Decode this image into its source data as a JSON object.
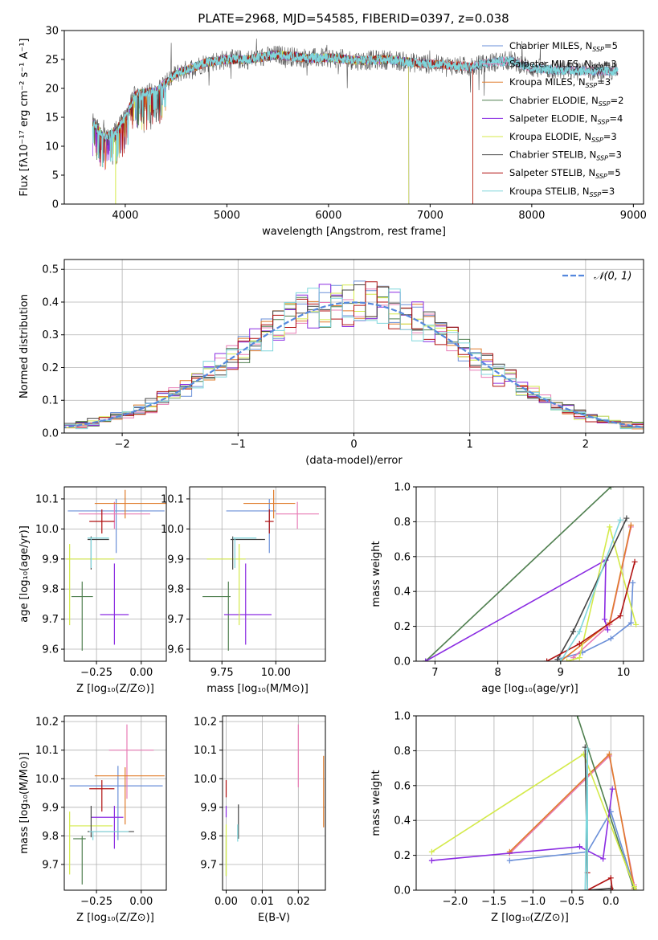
{
  "figure": {
    "title": "PLATE=2968, MJD=54585, FIBERID=0397, z=0.038"
  },
  "colors": {
    "Chabrier MILES": "#6a8fd8",
    "Salpeter MILES": "#e87cb5",
    "Kroupa MILES": "#e07b2a",
    "Chabrier ELODIE": "#4f7f4f",
    "Salpeter ELODIE": "#8a2be2",
    "Kroupa ELODIE": "#d4ea4a",
    "Chabrier STELIB": "#444444",
    "Salpeter STELIB": "#b01010",
    "Kroupa STELIB": "#7fd6dc"
  },
  "chart_data": [
    {
      "type": "line",
      "id": "spectrum",
      "xlabel": "wavelength [Angstrom, rest frame]",
      "ylabel": "Flux [fλ10⁻¹⁷ erg cm⁻² s⁻¹ A⁻¹]",
      "xlim": [
        3400,
        9100
      ],
      "ylim": [
        0,
        30
      ],
      "xticks": [
        4000,
        5000,
        6000,
        7000,
        8000,
        9000
      ],
      "yticks": [
        0,
        5,
        10,
        15,
        20,
        25,
        30
      ],
      "grid": false,
      "legend_position": "right",
      "legend": [
        {
          "label": "Chabrier MILES, N",
          "sub": "SSP",
          "eq": "=5",
          "series": "Chabrier MILES"
        },
        {
          "label": "Salpeter MILES, N",
          "sub": "SSP",
          "eq": "=3",
          "series": "Salpeter MILES"
        },
        {
          "label": "Kroupa MILES, N",
          "sub": "SSP",
          "eq": "=3",
          "series": "Kroupa MILES"
        },
        {
          "label": "Chabrier ELODIE, N",
          "sub": "SSP",
          "eq": "=2",
          "series": "Chabrier ELODIE"
        },
        {
          "label": "Salpeter ELODIE, N",
          "sub": "SSP",
          "eq": "=4",
          "series": "Salpeter ELODIE"
        },
        {
          "label": "Kroupa ELODIE, N",
          "sub": "SSP",
          "eq": "=3",
          "series": "Kroupa ELODIE"
        },
        {
          "label": "Chabrier STELIB, N",
          "sub": "SSP",
          "eq": "=3",
          "series": "Chabrier STELIB"
        },
        {
          "label": "Salpeter STELIB, N",
          "sub": "SSP",
          "eq": "=5",
          "series": "Salpeter STELIB"
        },
        {
          "label": "Kroupa STELIB, N",
          "sub": "SSP",
          "eq": "=3",
          "series": "Kroupa STELIB"
        }
      ],
      "observed_flux_envelope": {
        "x": [
          3680,
          3800,
          3900,
          4000,
          4100,
          4300,
          4500,
          4800,
          5000,
          5200,
          5500,
          5800,
          6000,
          6300,
          6600,
          6800,
          7000,
          7200,
          7400,
          7600,
          7800,
          8000,
          8200,
          8500,
          8850
        ],
        "y": [
          14,
          11.5,
          12.5,
          15,
          19,
          19.5,
          22.5,
          24.5,
          25,
          25,
          25.8,
          25.2,
          25.3,
          24.8,
          25,
          24.5,
          24.2,
          24,
          23.7,
          24.5,
          24.8,
          23.5,
          23.2,
          23,
          23
        ]
      },
      "model_cutoffs": {
        "Kroupa MILES": 7420,
        "Salpeter STELIB": 7420,
        "Kroupa ELODIE": 6790,
        "Chabrier ELODIE": 6790,
        "Salpeter ELODIE": 6790
      }
    },
    {
      "type": "line",
      "id": "residual-histogram",
      "xlabel": "(data-model)/error",
      "ylabel": "Normed distribution",
      "xlim": [
        -2.5,
        2.5
      ],
      "ylim": [
        0,
        0.53
      ],
      "xticks": [
        -2,
        -1,
        0,
        1,
        2
      ],
      "yticks": [
        0.0,
        0.1,
        0.2,
        0.3,
        0.4,
        0.5
      ],
      "grid": true,
      "legend_position": "top-right",
      "reference_curve": {
        "label": "𝒩(0, 1)",
        "mean": 0,
        "sigma": 1,
        "color": "#5588dd"
      },
      "bin_width": 0.1
    },
    {
      "type": "scatter",
      "id": "age-vs-Z",
      "xlabel": "Z [log₁₀(Z/Z⊙)]",
      "ylabel": "age  [log₁₀(age/yr)]",
      "xlim": [
        -0.43,
        0.14
      ],
      "ylim": [
        9.56,
        10.14
      ],
      "xticks": [
        -0.25,
        0.0
      ],
      "yticks": [
        9.6,
        9.7,
        9.8,
        9.9,
        10.0,
        10.1
      ],
      "grid": true,
      "points": [
        {
          "series": "Chabrier MILES",
          "x": -0.14,
          "y": 10.06,
          "xerr": [
            0.27,
            0.27
          ],
          "yerr": [
            0.14,
            0.04
          ]
        },
        {
          "series": "Salpeter MILES",
          "x": -0.15,
          "y": 10.05,
          "xerr": [
            0.2,
            0.2
          ],
          "yerr": [
            0.05,
            0.04
          ]
        },
        {
          "series": "Kroupa MILES",
          "x": -0.09,
          "y": 10.085,
          "xerr": [
            0.17,
            0.23
          ],
          "yerr": [
            0.05,
            0.045
          ]
        },
        {
          "series": "Chabrier ELODIE",
          "x": -0.33,
          "y": 9.775,
          "xerr": [
            0.06,
            0.06
          ],
          "yerr": [
            0.18,
            0.05
          ]
        },
        {
          "series": "Salpeter ELODIE",
          "x": -0.15,
          "y": 9.715,
          "xerr": [
            0.08,
            0.08
          ],
          "yerr": [
            0.1,
            0.17
          ]
        },
        {
          "series": "Kroupa ELODIE",
          "x": -0.4,
          "y": 9.9,
          "xerr": [
            0.02,
            0.25
          ],
          "yerr": [
            0.22,
            0.05
          ]
        },
        {
          "series": "Chabrier STELIB",
          "x": -0.28,
          "y": 9.965,
          "xerr": [
            0.02,
            0.1
          ],
          "yerr": [
            0.1,
            0.01
          ]
        },
        {
          "series": "Salpeter STELIB",
          "x": -0.22,
          "y": 10.025,
          "xerr": [
            0.07,
            0.07
          ],
          "yerr": [
            0.04,
            0.04
          ]
        },
        {
          "series": "Kroupa STELIB",
          "x": -0.28,
          "y": 9.97,
          "xerr": [
            0.02,
            0.1
          ],
          "yerr": [
            0.1,
            0.0
          ]
        }
      ]
    },
    {
      "type": "scatter",
      "id": "age-vs-mass",
      "xlabel": "mass [log₁₀(M/M⊙)]",
      "ylabel": "",
      "xlim": [
        9.6,
        10.23
      ],
      "ylim": [
        9.56,
        10.14
      ],
      "xticks": [
        9.75,
        10.0
      ],
      "yticks": [
        9.6,
        9.7,
        9.8,
        9.9,
        10.0,
        10.1
      ],
      "grid": true,
      "points": [
        {
          "series": "Chabrier MILES",
          "x": 9.97,
          "y": 10.06,
          "xerr": [
            0.2,
            0.03
          ],
          "yerr": [
            0.14,
            0.04
          ]
        },
        {
          "series": "Salpeter MILES",
          "x": 10.1,
          "y": 10.05,
          "xerr": [
            0.1,
            0.1
          ],
          "yerr": [
            0.05,
            0.04
          ]
        },
        {
          "series": "Kroupa MILES",
          "x": 9.99,
          "y": 10.085,
          "xerr": [
            0.14,
            0.1
          ],
          "yerr": [
            0.05,
            0.045
          ]
        },
        {
          "series": "Chabrier ELODIE",
          "x": 9.78,
          "y": 9.775,
          "xerr": [
            0.12,
            0.01
          ],
          "yerr": [
            0.18,
            0.05
          ]
        },
        {
          "series": "Salpeter ELODIE",
          "x": 9.86,
          "y": 9.715,
          "xerr": [
            0.1,
            0.12
          ],
          "yerr": [
            0.1,
            0.17
          ]
        },
        {
          "series": "Kroupa ELODIE",
          "x": 9.83,
          "y": 9.9,
          "xerr": [
            0.15,
            0.03
          ],
          "yerr": [
            0.22,
            0.05
          ]
        },
        {
          "series": "Chabrier STELIB",
          "x": 9.8,
          "y": 9.965,
          "xerr": [
            0.01,
            0.15
          ],
          "yerr": [
            0.1,
            0.01
          ]
        },
        {
          "series": "Salpeter STELIB",
          "x": 9.97,
          "y": 10.025,
          "xerr": [
            0.02,
            0.02
          ],
          "yerr": [
            0.04,
            0.04
          ]
        },
        {
          "series": "Kroupa STELIB",
          "x": 9.81,
          "y": 9.97,
          "xerr": [
            0.01,
            0.1
          ],
          "yerr": [
            0.1,
            0.0
          ]
        }
      ]
    },
    {
      "type": "line",
      "id": "mass-weight-vs-age",
      "xlabel": "age  [log₁₀(age/yr)]",
      "ylabel": "mass weight",
      "xlim": [
        6.7,
        10.32
      ],
      "ylim": [
        0,
        1
      ],
      "xticks": [
        7,
        8,
        9,
        10
      ],
      "yticks": [
        0.0,
        0.2,
        0.4,
        0.6,
        0.8,
        1.0
      ],
      "grid": true,
      "series": [
        {
          "name": "Chabrier MILES",
          "x": [
            8.95,
            9.35,
            9.8,
            10.12,
            10.15
          ],
          "y": [
            0.01,
            0.05,
            0.13,
            0.22,
            0.45
          ]
        },
        {
          "name": "Salpeter MILES",
          "x": [
            9.2,
            9.78,
            10.12
          ],
          "y": [
            0.02,
            0.21,
            0.77
          ]
        },
        {
          "name": "Kroupa MILES",
          "x": [
            9.0,
            9.78,
            10.12
          ],
          "y": [
            0.0,
            0.22,
            0.78
          ]
        },
        {
          "name": "Chabrier ELODIE",
          "x": [
            6.85,
            9.8
          ],
          "y": [
            0.0,
            1.0
          ]
        },
        {
          "name": "Salpeter ELODIE",
          "x": [
            6.85,
            9.72,
            9.7,
            9.75
          ],
          "y": [
            0.0,
            0.58,
            0.24,
            0.18
          ]
        },
        {
          "name": "Kroupa ELODIE",
          "x": [
            9.1,
            9.3,
            9.78,
            10.2
          ],
          "y": [
            0.0,
            0.02,
            0.77,
            0.21
          ]
        },
        {
          "name": "Chabrier STELIB",
          "x": [
            8.95,
            9.2,
            10.05
          ],
          "y": [
            0.01,
            0.17,
            0.82
          ]
        },
        {
          "name": "Salpeter STELIB",
          "x": [
            8.78,
            9.3,
            9.95,
            10.18
          ],
          "y": [
            0.0,
            0.1,
            0.26,
            0.57
          ]
        },
        {
          "name": "Kroupa STELIB",
          "x": [
            9.0,
            9.3,
            9.95
          ],
          "y": [
            0.0,
            0.17,
            0.81
          ]
        }
      ]
    },
    {
      "type": "scatter",
      "id": "mass-vs-Z",
      "xlabel": "Z [log₁₀(Z/Z⊙)]",
      "ylabel": "mass [log₁₀(M/M⊙)]",
      "xlim": [
        -0.43,
        0.14
      ],
      "ylim": [
        9.61,
        10.22
      ],
      "xticks": [
        -0.25,
        0.0
      ],
      "yticks": [
        9.7,
        9.8,
        9.9,
        10.0,
        10.1,
        10.2
      ],
      "grid": true,
      "points": [
        {
          "series": "Chabrier MILES",
          "x": -0.13,
          "y": 9.975,
          "xerr": [
            0.27,
            0.25
          ],
          "yerr": [
            0.19,
            0.07
          ]
        },
        {
          "series": "Salpeter MILES",
          "x": -0.08,
          "y": 10.1,
          "xerr": [
            0.1,
            0.15
          ],
          "yerr": [
            0.17,
            0.09
          ]
        },
        {
          "series": "Kroupa MILES",
          "x": -0.09,
          "y": 10.01,
          "xerr": [
            0.17,
            0.22
          ],
          "yerr": [
            0.17,
            0.03
          ]
        },
        {
          "series": "Chabrier ELODIE",
          "x": -0.33,
          "y": 9.79,
          "xerr": [
            0.05,
            0.02
          ],
          "yerr": [
            0.16,
            0.01
          ]
        },
        {
          "series": "Salpeter ELODIE",
          "x": -0.15,
          "y": 9.865,
          "xerr": [
            0.13,
            0.05
          ],
          "yerr": [
            0.11,
            0.04
          ]
        },
        {
          "series": "Kroupa ELODIE",
          "x": -0.4,
          "y": 9.835,
          "xerr": [
            0.0,
            0.24
          ],
          "yerr": [
            0.17,
            0.05
          ]
        },
        {
          "series": "Chabrier STELIB",
          "x": -0.28,
          "y": 9.815,
          "xerr": [
            0.02,
            0.24
          ],
          "yerr": [
            0.02,
            0.09
          ]
        },
        {
          "series": "Salpeter STELIB",
          "x": -0.22,
          "y": 9.965,
          "xerr": [
            0.07,
            0.07
          ],
          "yerr": [
            0.08,
            0.03
          ]
        },
        {
          "series": "Kroupa STELIB",
          "x": -0.27,
          "y": 9.815,
          "xerr": [
            0.02,
            0.2
          ],
          "yerr": [
            0.03,
            0.0
          ]
        }
      ]
    },
    {
      "type": "scatter",
      "id": "mass-vs-ebv",
      "xlabel": "E(B-V)",
      "ylabel": "",
      "xlim": [
        -0.001,
        0.0275
      ],
      "ylim": [
        9.61,
        10.22
      ],
      "xticks": [
        0.0,
        0.01,
        0.02
      ],
      "yticks": [
        9.7,
        9.8,
        9.9,
        10.0,
        10.1,
        10.2
      ],
      "grid": true,
      "points": [
        {
          "series": "Chabrier MILES",
          "x": 0.02,
          "y": 9.975,
          "xerr": [
            0,
            0
          ],
          "yerr": [
            0.0,
            0.0
          ]
        },
        {
          "series": "Salpeter MILES",
          "x": 0.02,
          "y": 10.1,
          "xerr": [
            0,
            0
          ],
          "yerr": [
            0.13,
            0.09
          ]
        },
        {
          "series": "Kroupa MILES",
          "x": 0.027,
          "y": 9.99,
          "xerr": [
            0,
            0
          ],
          "yerr": [
            0.16,
            0.09
          ]
        },
        {
          "series": "Chabrier ELODIE",
          "x": 0.0,
          "y": 9.79,
          "xerr": [
            0,
            0
          ],
          "yerr": [
            0.13,
            0.01
          ]
        },
        {
          "series": "Salpeter ELODIE",
          "x": 0.0,
          "y": 9.865,
          "xerr": [
            0,
            0
          ],
          "yerr": [
            0.0,
            0.04
          ]
        },
        {
          "series": "Kroupa ELODIE",
          "x": 0.0,
          "y": 9.8,
          "xerr": [
            0,
            0
          ],
          "yerr": [
            0.14,
            0.04
          ]
        },
        {
          "series": "Chabrier STELIB",
          "x": 0.0034,
          "y": 9.83,
          "xerr": [
            0,
            0
          ],
          "yerr": [
            0.04,
            0.08
          ]
        },
        {
          "series": "Salpeter STELIB",
          "x": 0.0,
          "y": 9.965,
          "xerr": [
            0,
            0
          ],
          "yerr": [
            0.03,
            0.03
          ]
        },
        {
          "series": "Kroupa STELIB",
          "x": 0.0032,
          "y": 9.82,
          "xerr": [
            0,
            0
          ],
          "yerr": [
            0.04,
            0.02
          ]
        }
      ]
    },
    {
      "type": "line",
      "id": "mass-weight-vs-Z",
      "xlabel": "Z [log₁₀(Z/Z⊙)]",
      "ylabel": "mass weight",
      "xlim": [
        -2.5,
        0.42
      ],
      "ylim": [
        0,
        1
      ],
      "xticks": [
        -2.0,
        -1.5,
        -1.0,
        -0.5,
        0.0
      ],
      "yticks": [
        0.0,
        0.2,
        0.4,
        0.6,
        0.8,
        1.0
      ],
      "grid": true,
      "series": [
        {
          "name": "Chabrier MILES",
          "x": [
            -1.3,
            -0.3,
            0.0,
            0.3
          ],
          "y": [
            0.17,
            0.22,
            0.45,
            0.02
          ]
        },
        {
          "name": "Salpeter MILES",
          "x": [
            -1.3,
            -0.02,
            0.3
          ],
          "y": [
            0.21,
            0.77,
            0.03
          ]
        },
        {
          "name": "Kroupa MILES",
          "x": [
            -1.3,
            -0.02,
            0.3
          ],
          "y": [
            0.22,
            0.78,
            0.01
          ]
        },
        {
          "name": "Chabrier ELODIE",
          "x": [
            -0.43,
            0.3
          ],
          "y": [
            1.0,
            0.0
          ]
        },
        {
          "name": "Salpeter ELODIE",
          "x": [
            -2.3,
            -0.4,
            -0.1,
            0.02
          ],
          "y": [
            0.17,
            0.25,
            0.18,
            0.58
          ]
        },
        {
          "name": "Kroupa ELODIE",
          "x": [
            -2.3,
            -0.35,
            0.3,
            0.32
          ],
          "y": [
            0.22,
            0.78,
            0.02,
            0.0
          ]
        },
        {
          "name": "Chabrier STELIB",
          "x": [
            -0.33,
            -0.3,
            0.0
          ],
          "y": [
            0.82,
            0.0,
            0.01
          ]
        },
        {
          "name": "Salpeter STELIB",
          "x": [
            -0.3,
            -0.3,
            0.0,
            0.02
          ],
          "y": [
            0.1,
            0.0,
            0.07,
            0.0
          ]
        },
        {
          "name": "Kroupa STELIB",
          "x": [
            -0.3,
            -0.3,
            -0.33
          ],
          "y": [
            0.0,
            0.81,
            0.0
          ]
        }
      ]
    }
  ]
}
